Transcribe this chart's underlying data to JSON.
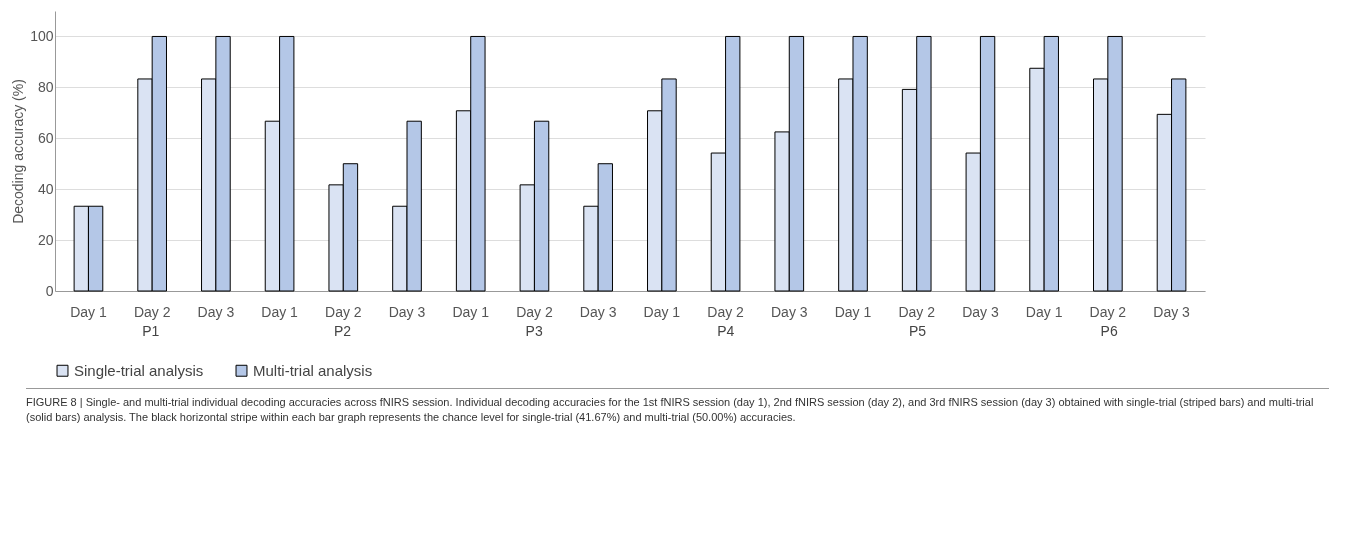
{
  "chart_data": {
    "type": "bar",
    "ylabel": "Decoding accuracy (%)",
    "categories": [
      "Day 1",
      "Day 2",
      "Day 3",
      "Day 1",
      "Day 2",
      "Day 3",
      "Day 1",
      "Day 2",
      "Day 3",
      "Day 1",
      "Day 2",
      "Day 3",
      "Day 1",
      "Day 2",
      "Day 3",
      "Day 1",
      "Day 2",
      "Day 3"
    ],
    "series": [
      {
        "name": "Single-trial analysis",
        "color": "#dae3f3",
        "values": [
          33.3,
          83.3,
          83.3,
          66.7,
          41.7,
          33.3,
          70.8,
          41.7,
          33.3,
          70.8,
          54.2,
          62.5,
          83.3,
          79.2,
          54.2,
          87.5,
          83.3,
          69.4
        ]
      },
      {
        "name": "Multi-trial analysis",
        "color": "#b4c7e7",
        "values": [
          33.3,
          100,
          100,
          100,
          50,
          66.7,
          100,
          66.7,
          50,
          83.3,
          100,
          100,
          100,
          100,
          100,
          100,
          100,
          83.3
        ]
      }
    ],
    "ylim": [
      0,
      110
    ],
    "yticks": [
      0,
      20,
      40,
      60,
      80,
      100
    ],
    "grid": "y",
    "legend": "bottom",
    "annotations": [
      "P1",
      "P2",
      "P3",
      "P4",
      "P5",
      "P6",
      "FIGURE 8 | Single- and multi-trial individual decoding accuracies across fNIRS session. Individual decoding accuracies for the 1st fNIRS session (day 1), 2nd fNIRS session (day 2), and 3rd fNIRS session (day 3) obtained with single-trial (striped bars) and multi-trial (solid bars) analysis. The black horizontal stripe within each bar graph represents the chance level for single-trial (41.67%) and multi-trial (50.00%) accuracies."
    ]
  }
}
